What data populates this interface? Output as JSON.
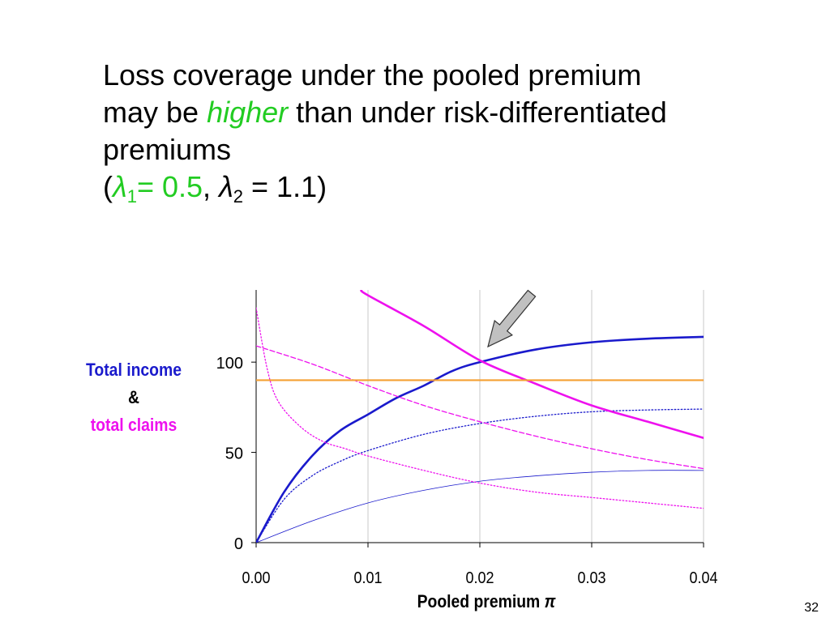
{
  "slide": {
    "title_line1": "Loss coverage under the pooled premium",
    "title_line2_pre": "may be ",
    "title_line2_em": "higher",
    "title_line2_post": " than under risk-differentiated",
    "title_line3": "premiums",
    "params": {
      "open": "(",
      "lambda1_symbol": "λ",
      "lambda1_sub": "1",
      "lambda1_value": "= 0.5",
      "sep": ", ",
      "lambda2_symbol": "λ",
      "lambda2_sub": "2",
      "lambda2_value": " = 1.1)"
    },
    "slide_number": "32"
  },
  "ylabel": {
    "line1": "Total income",
    "line2": "&",
    "line3": "total claims"
  },
  "colors": {
    "blue": "#1a1acc",
    "magenta": "#ee11ee",
    "orange": "#f5a033",
    "grid": "#c8c8c8",
    "arrow_fill": "#c0c0c0"
  },
  "chart_data": {
    "type": "line",
    "xlabel": "Pooled premium π",
    "x_ticks": [
      "0.00",
      "0.01",
      "0.02",
      "0.03",
      "0.04"
    ],
    "y_ticks": [
      "0",
      "50",
      "100"
    ],
    "xlim": [
      0,
      0.04
    ],
    "ylim": [
      0,
      140
    ],
    "grid": "vertical",
    "annotation": "arrow pointing at intersection near π = 0.02",
    "series": [
      {
        "color": "#1a1acc",
        "style": "solid-thick",
        "points": [
          [
            0,
            0
          ],
          [
            0.0025,
            28
          ],
          [
            0.005,
            48
          ],
          [
            0.0075,
            62
          ],
          [
            0.01,
            71
          ],
          [
            0.0125,
            80
          ],
          [
            0.015,
            87
          ],
          [
            0.0175,
            95
          ],
          [
            0.02,
            100
          ],
          [
            0.025,
            107
          ],
          [
            0.03,
            111
          ],
          [
            0.035,
            113
          ],
          [
            0.04,
            114
          ]
        ]
      },
      {
        "color": "#1a1acc",
        "style": "dotted",
        "points": [
          [
            0,
            0
          ],
          [
            0.0025,
            24
          ],
          [
            0.005,
            37
          ],
          [
            0.0075,
            45
          ],
          [
            0.01,
            51
          ],
          [
            0.015,
            60
          ],
          [
            0.02,
            66
          ],
          [
            0.025,
            70
          ],
          [
            0.03,
            72.5
          ],
          [
            0.035,
            73.5
          ],
          [
            0.04,
            74
          ]
        ]
      },
      {
        "color": "#1a1acc",
        "style": "thin",
        "points": [
          [
            0,
            0
          ],
          [
            0.005,
            12
          ],
          [
            0.01,
            22
          ],
          [
            0.015,
            29
          ],
          [
            0.02,
            34
          ],
          [
            0.025,
            37
          ],
          [
            0.03,
            39
          ],
          [
            0.035,
            40
          ],
          [
            0.04,
            40
          ]
        ]
      },
      {
        "color": "#ee11ee",
        "style": "solid-thick",
        "points": [
          [
            0.0094,
            140
          ],
          [
            0.01,
            137
          ],
          [
            0.015,
            120
          ],
          [
            0.02,
            101
          ],
          [
            0.025,
            88
          ],
          [
            0.03,
            76
          ],
          [
            0.035,
            67
          ],
          [
            0.04,
            58
          ]
        ]
      },
      {
        "color": "#ee11ee",
        "style": "dashed",
        "points": [
          [
            0,
            109
          ],
          [
            0.005,
            99
          ],
          [
            0.01,
            87
          ],
          [
            0.015,
            76
          ],
          [
            0.02,
            67
          ],
          [
            0.025,
            59
          ],
          [
            0.03,
            52
          ],
          [
            0.035,
            46
          ],
          [
            0.04,
            41
          ]
        ]
      },
      {
        "color": "#ee11ee",
        "style": "dotted",
        "points": [
          [
            0,
            130
          ],
          [
            0.001,
            96
          ],
          [
            0.002,
            78
          ],
          [
            0.004,
            64
          ],
          [
            0.006,
            56
          ],
          [
            0.008,
            52
          ],
          [
            0.01,
            48
          ],
          [
            0.015,
            40
          ],
          [
            0.02,
            33
          ],
          [
            0.025,
            28
          ],
          [
            0.03,
            25
          ],
          [
            0.035,
            22
          ],
          [
            0.04,
            19
          ]
        ]
      },
      {
        "color": "#f5a033",
        "style": "solid",
        "points": [
          [
            0,
            90
          ],
          [
            0.04,
            90
          ]
        ]
      }
    ]
  }
}
